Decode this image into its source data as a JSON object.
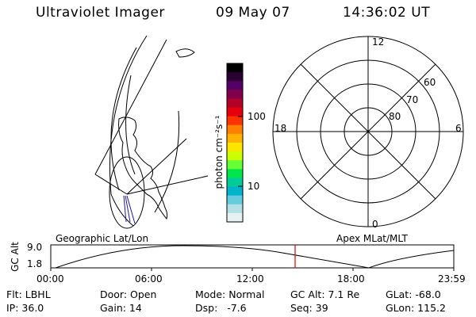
{
  "header": {
    "instrument": "Ultraviolet Imager",
    "date": "09 May 07",
    "time": "14:36:02 UT"
  },
  "colorbar": {
    "unit_label": "photon cm⁻²s⁻¹",
    "tick_100": "100",
    "tick_10": "10",
    "colors": [
      "#000000",
      "#2b0033",
      "#550066",
      "#80004d",
      "#b30026",
      "#e6000d",
      "#ff3300",
      "#ff8000",
      "#ffb300",
      "#ffe600",
      "#ccff00",
      "#66ff33",
      "#00e64d",
      "#00cc99",
      "#00b3cc",
      "#66ccdd",
      "#b3e0e6",
      "#e6f2f2"
    ]
  },
  "polar_plot": {
    "label_top": "12",
    "label_bottom": "0",
    "label_left": "18",
    "label_right": "6",
    "ring_60": "60",
    "ring_70": "70",
    "ring_80": "80"
  },
  "timeline": {
    "left_label": "Geographic Lat/Lon",
    "right_label": "Apex MLat/MLT",
    "y_axis_label": "GC Alt",
    "y_top": "9.0",
    "y_bottom": "1.8",
    "x_ticks": [
      "00:00",
      "06:00",
      "12:00",
      "18:00",
      "23:59"
    ],
    "marker_color": "#e00000"
  },
  "status": {
    "flt": "Flt: LBHL",
    "ip": "IP: 36.0",
    "door": "Door: Open",
    "gain": "Gain: 14",
    "mode": "Mode: Normal",
    "dsp": "Dsp:   -7.6",
    "gc_alt": "GC Alt: 7.1 Re",
    "seq": "Seq: 39",
    "glat": "GLat: -68.0",
    "glon": "GLon: 115.2"
  }
}
